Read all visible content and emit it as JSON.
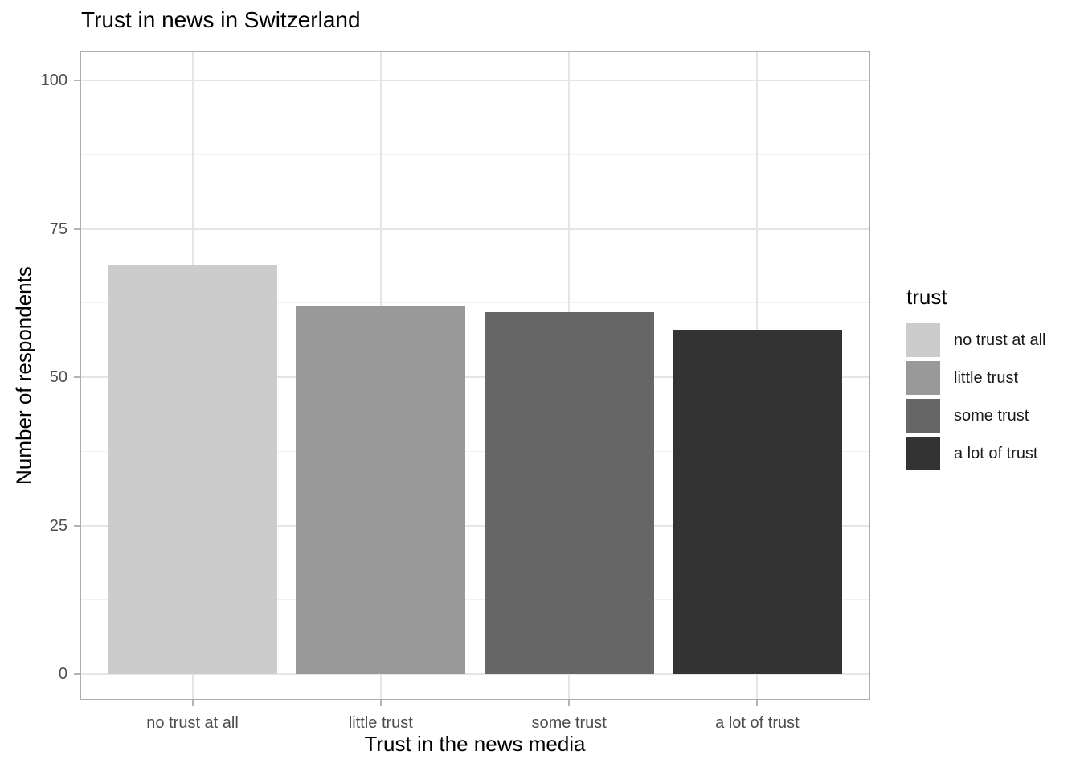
{
  "chart_data": {
    "type": "bar",
    "title": "Trust in news in Switzerland",
    "xlabel": "Trust in the news media",
    "ylabel": "Number of respondents",
    "categories": [
      "no trust at all",
      "little trust",
      "some trust",
      "a lot of trust"
    ],
    "values": [
      69,
      62,
      61,
      58
    ],
    "bar_colors": [
      "#CCCCCC",
      "#999999",
      "#666666",
      "#333333"
    ],
    "ylim": [
      0,
      105
    ],
    "yticks": [
      0,
      25,
      50,
      75,
      100
    ],
    "grid": "horizontal major+minor gridlines, vertical major gridlines at category centers, gridlines on",
    "legend": {
      "title": "trust",
      "position": "right",
      "entries": [
        {
          "label": "no trust at all",
          "color": "#CCCCCC"
        },
        {
          "label": "little trust",
          "color": "#999999"
        },
        {
          "label": "some trust",
          "color": "#666666"
        },
        {
          "label": "a lot of trust",
          "color": "#333333"
        }
      ]
    }
  },
  "style": {
    "background": "#FFFFFF",
    "panel_background": "#FFFFFF",
    "panel_border": "#ADADAD",
    "grid_major": "#E5E5E5",
    "grid_minor": "#F1F1F1",
    "tick_mark": "#B3B3B3",
    "tick_label_color": "#4D4D4D",
    "title_color": "#000000",
    "legend_label_color": "#1A1A1A"
  }
}
